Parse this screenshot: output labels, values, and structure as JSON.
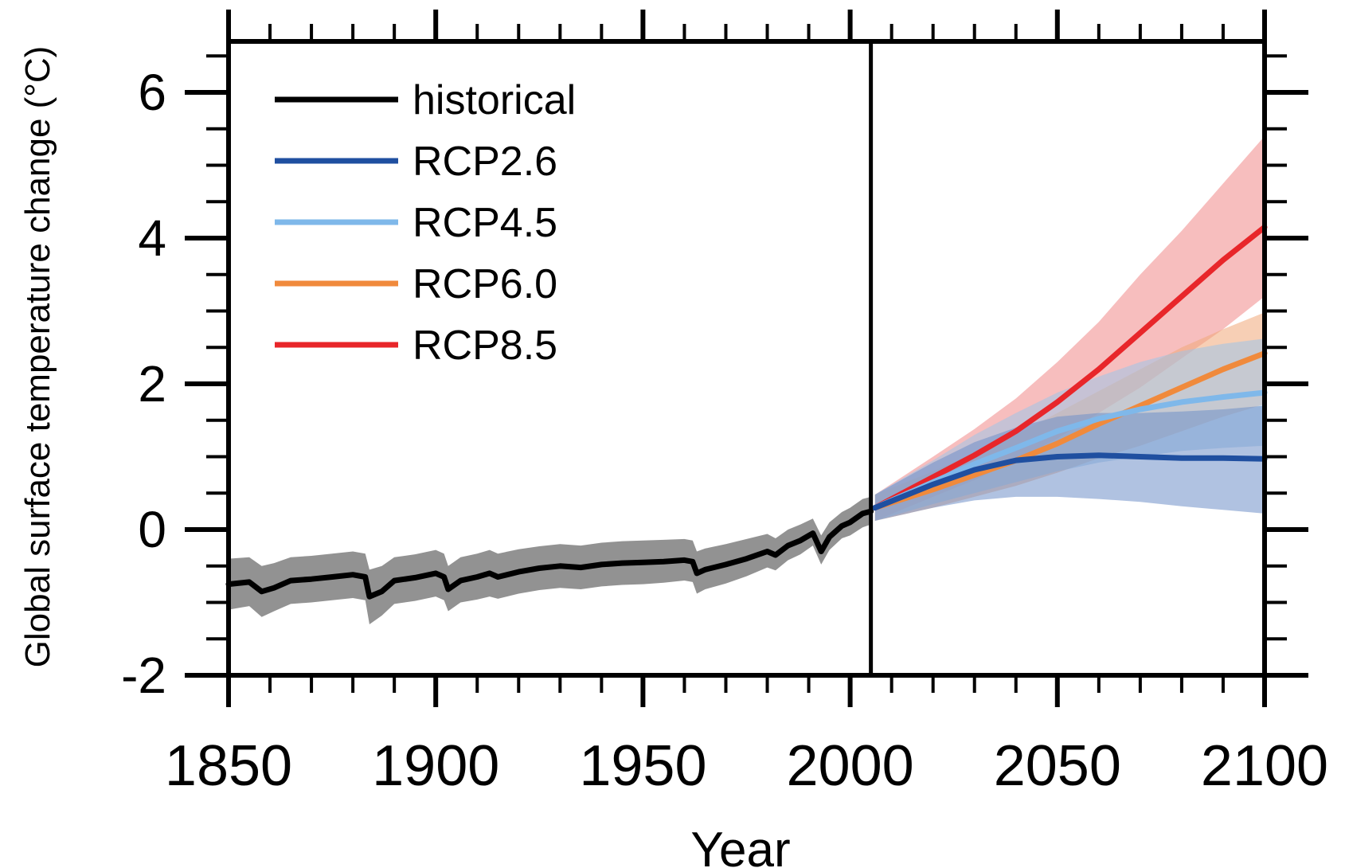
{
  "chart_data": {
    "type": "line",
    "title": "",
    "xlabel": "Year",
    "ylabel": "Global surface temperature change (°C)",
    "xlim": [
      1850,
      2100
    ],
    "ylim": [
      -2,
      6.7
    ],
    "x_ticks": [
      "1850",
      "1900",
      "1950",
      "2000",
      "2050",
      "2100"
    ],
    "y_ticks": [
      "-2",
      "0",
      "2",
      "4",
      "6"
    ],
    "divider_year": 2005,
    "legend_position": "top-left",
    "series": [
      {
        "name": "historical",
        "color": "#000000",
        "band_color": "#8c8c8c",
        "x": [
          1850,
          1855,
          1858,
          1861,
          1865,
          1870,
          1875,
          1880,
          1883,
          1884,
          1887,
          1890,
          1895,
          1900,
          1902,
          1903,
          1906,
          1910,
          1913,
          1915,
          1920,
          1925,
          1930,
          1935,
          1940,
          1945,
          1950,
          1955,
          1960,
          1962,
          1963,
          1965,
          1970,
          1975,
          1980,
          1982,
          1985,
          1988,
          1991,
          1993,
          1995,
          1998,
          2000,
          2003,
          2005
        ],
        "y": [
          -0.75,
          -0.72,
          -0.85,
          -0.8,
          -0.7,
          -0.68,
          -0.65,
          -0.62,
          -0.65,
          -0.92,
          -0.85,
          -0.7,
          -0.66,
          -0.6,
          -0.65,
          -0.82,
          -0.7,
          -0.65,
          -0.6,
          -0.65,
          -0.58,
          -0.53,
          -0.5,
          -0.52,
          -0.48,
          -0.46,
          -0.45,
          -0.44,
          -0.42,
          -0.44,
          -0.6,
          -0.55,
          -0.48,
          -0.4,
          -0.3,
          -0.35,
          -0.22,
          -0.15,
          -0.05,
          -0.3,
          -0.1,
          0.05,
          0.1,
          0.22,
          0.25
        ],
        "lower": [
          -1.1,
          -1.05,
          -1.2,
          -1.12,
          -1.02,
          -1.0,
          -0.97,
          -0.94,
          -0.97,
          -1.3,
          -1.18,
          -1.02,
          -0.98,
          -0.92,
          -0.97,
          -1.12,
          -1.0,
          -0.96,
          -0.92,
          -0.95,
          -0.88,
          -0.83,
          -0.8,
          -0.82,
          -0.78,
          -0.76,
          -0.75,
          -0.73,
          -0.7,
          -0.72,
          -0.88,
          -0.82,
          -0.74,
          -0.64,
          -0.52,
          -0.56,
          -0.42,
          -0.34,
          -0.22,
          -0.48,
          -0.28,
          -0.12,
          -0.08,
          0.03,
          0.07
        ],
        "upper": [
          -0.4,
          -0.38,
          -0.5,
          -0.46,
          -0.38,
          -0.36,
          -0.33,
          -0.3,
          -0.33,
          -0.55,
          -0.5,
          -0.38,
          -0.34,
          -0.28,
          -0.33,
          -0.5,
          -0.38,
          -0.33,
          -0.28,
          -0.33,
          -0.27,
          -0.23,
          -0.2,
          -0.22,
          -0.18,
          -0.16,
          -0.15,
          -0.14,
          -0.13,
          -0.15,
          -0.3,
          -0.26,
          -0.2,
          -0.13,
          -0.06,
          -0.12,
          0.0,
          0.07,
          0.15,
          -0.08,
          0.1,
          0.24,
          0.3,
          0.42,
          0.45
        ]
      },
      {
        "name": "RCP2.6",
        "color": "#1f4fa0",
        "band_color": "#6f8fc8",
        "x": [
          2006,
          2020,
          2030,
          2040,
          2050,
          2060,
          2070,
          2080,
          2090,
          2100
        ],
        "y": [
          0.3,
          0.62,
          0.82,
          0.95,
          1.0,
          1.02,
          1.0,
          0.98,
          0.98,
          0.97
        ],
        "lower": [
          0.12,
          0.3,
          0.4,
          0.45,
          0.45,
          0.42,
          0.38,
          0.32,
          0.27,
          0.22
        ],
        "upper": [
          0.48,
          0.92,
          1.2,
          1.4,
          1.55,
          1.6,
          1.6,
          1.62,
          1.65,
          1.7
        ]
      },
      {
        "name": "RCP4.5",
        "color": "#7fb8ea",
        "band_color": "#9fc4e8",
        "x": [
          2006,
          2020,
          2030,
          2040,
          2050,
          2060,
          2070,
          2080,
          2090,
          2100
        ],
        "y": [
          0.3,
          0.65,
          0.9,
          1.12,
          1.35,
          1.52,
          1.65,
          1.75,
          1.82,
          1.88
        ],
        "lower": [
          0.12,
          0.35,
          0.5,
          0.65,
          0.8,
          0.92,
          1.0,
          1.08,
          1.12,
          1.15
        ],
        "upper": [
          0.48,
          0.95,
          1.3,
          1.6,
          1.88,
          2.1,
          2.3,
          2.45,
          2.55,
          2.62
        ]
      },
      {
        "name": "RCP6.0",
        "color": "#f08a3c",
        "band_color": "#f0a878",
        "x": [
          2006,
          2020,
          2030,
          2040,
          2050,
          2060,
          2070,
          2080,
          2090,
          2100
        ],
        "y": [
          0.3,
          0.55,
          0.75,
          0.95,
          1.18,
          1.45,
          1.7,
          1.95,
          2.2,
          2.42
        ],
        "lower": [
          0.12,
          0.3,
          0.45,
          0.6,
          0.78,
          0.98,
          1.15,
          1.35,
          1.55,
          1.72
        ],
        "upper": [
          0.48,
          0.8,
          1.05,
          1.3,
          1.6,
          1.9,
          2.2,
          2.5,
          2.75,
          2.98
        ]
      },
      {
        "name": "RCP8.5",
        "color": "#e8262a",
        "band_color": "#f08888",
        "x": [
          2006,
          2020,
          2030,
          2040,
          2050,
          2060,
          2070,
          2080,
          2090,
          2100
        ],
        "y": [
          0.3,
          0.72,
          1.02,
          1.35,
          1.75,
          2.2,
          2.7,
          3.2,
          3.7,
          4.15
        ],
        "lower": [
          0.12,
          0.45,
          0.68,
          0.95,
          1.25,
          1.6,
          1.95,
          2.35,
          2.75,
          3.2
        ],
        "upper": [
          0.48,
          1.0,
          1.38,
          1.8,
          2.3,
          2.85,
          3.5,
          4.1,
          4.75,
          5.4
        ]
      }
    ]
  }
}
